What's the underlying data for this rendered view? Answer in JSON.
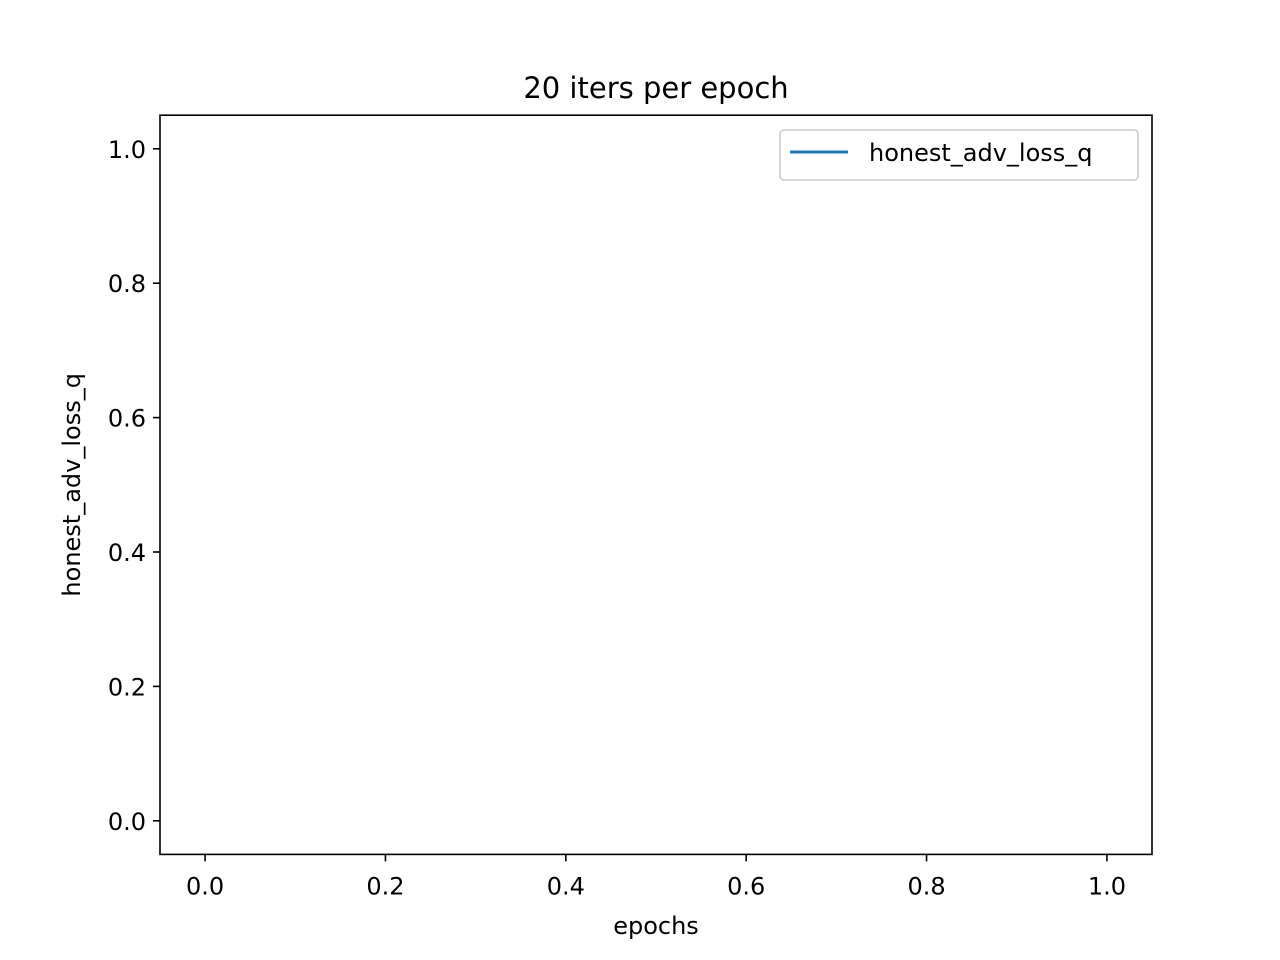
{
  "chart_data": {
    "type": "line",
    "title": "20 iters per epoch",
    "xlabel": "epochs",
    "ylabel": "honest_adv_loss_q",
    "xlim": [
      -0.05,
      1.05
    ],
    "ylim": [
      -0.05,
      1.05
    ],
    "xticks": [
      0.0,
      0.2,
      0.4,
      0.6,
      0.8,
      1.0
    ],
    "yticks": [
      0.0,
      0.2,
      0.4,
      0.6,
      0.8,
      1.0
    ],
    "xtick_labels": [
      "0.0",
      "0.2",
      "0.4",
      "0.6",
      "0.8",
      "1.0"
    ],
    "ytick_labels": [
      "0.0",
      "0.2",
      "0.4",
      "0.6",
      "0.8",
      "1.0"
    ],
    "grid": false,
    "legend_position": "top-right",
    "series": [
      {
        "name": "honest_adv_loss_q",
        "color": "#1f77b4",
        "x": [],
        "y": []
      }
    ]
  }
}
